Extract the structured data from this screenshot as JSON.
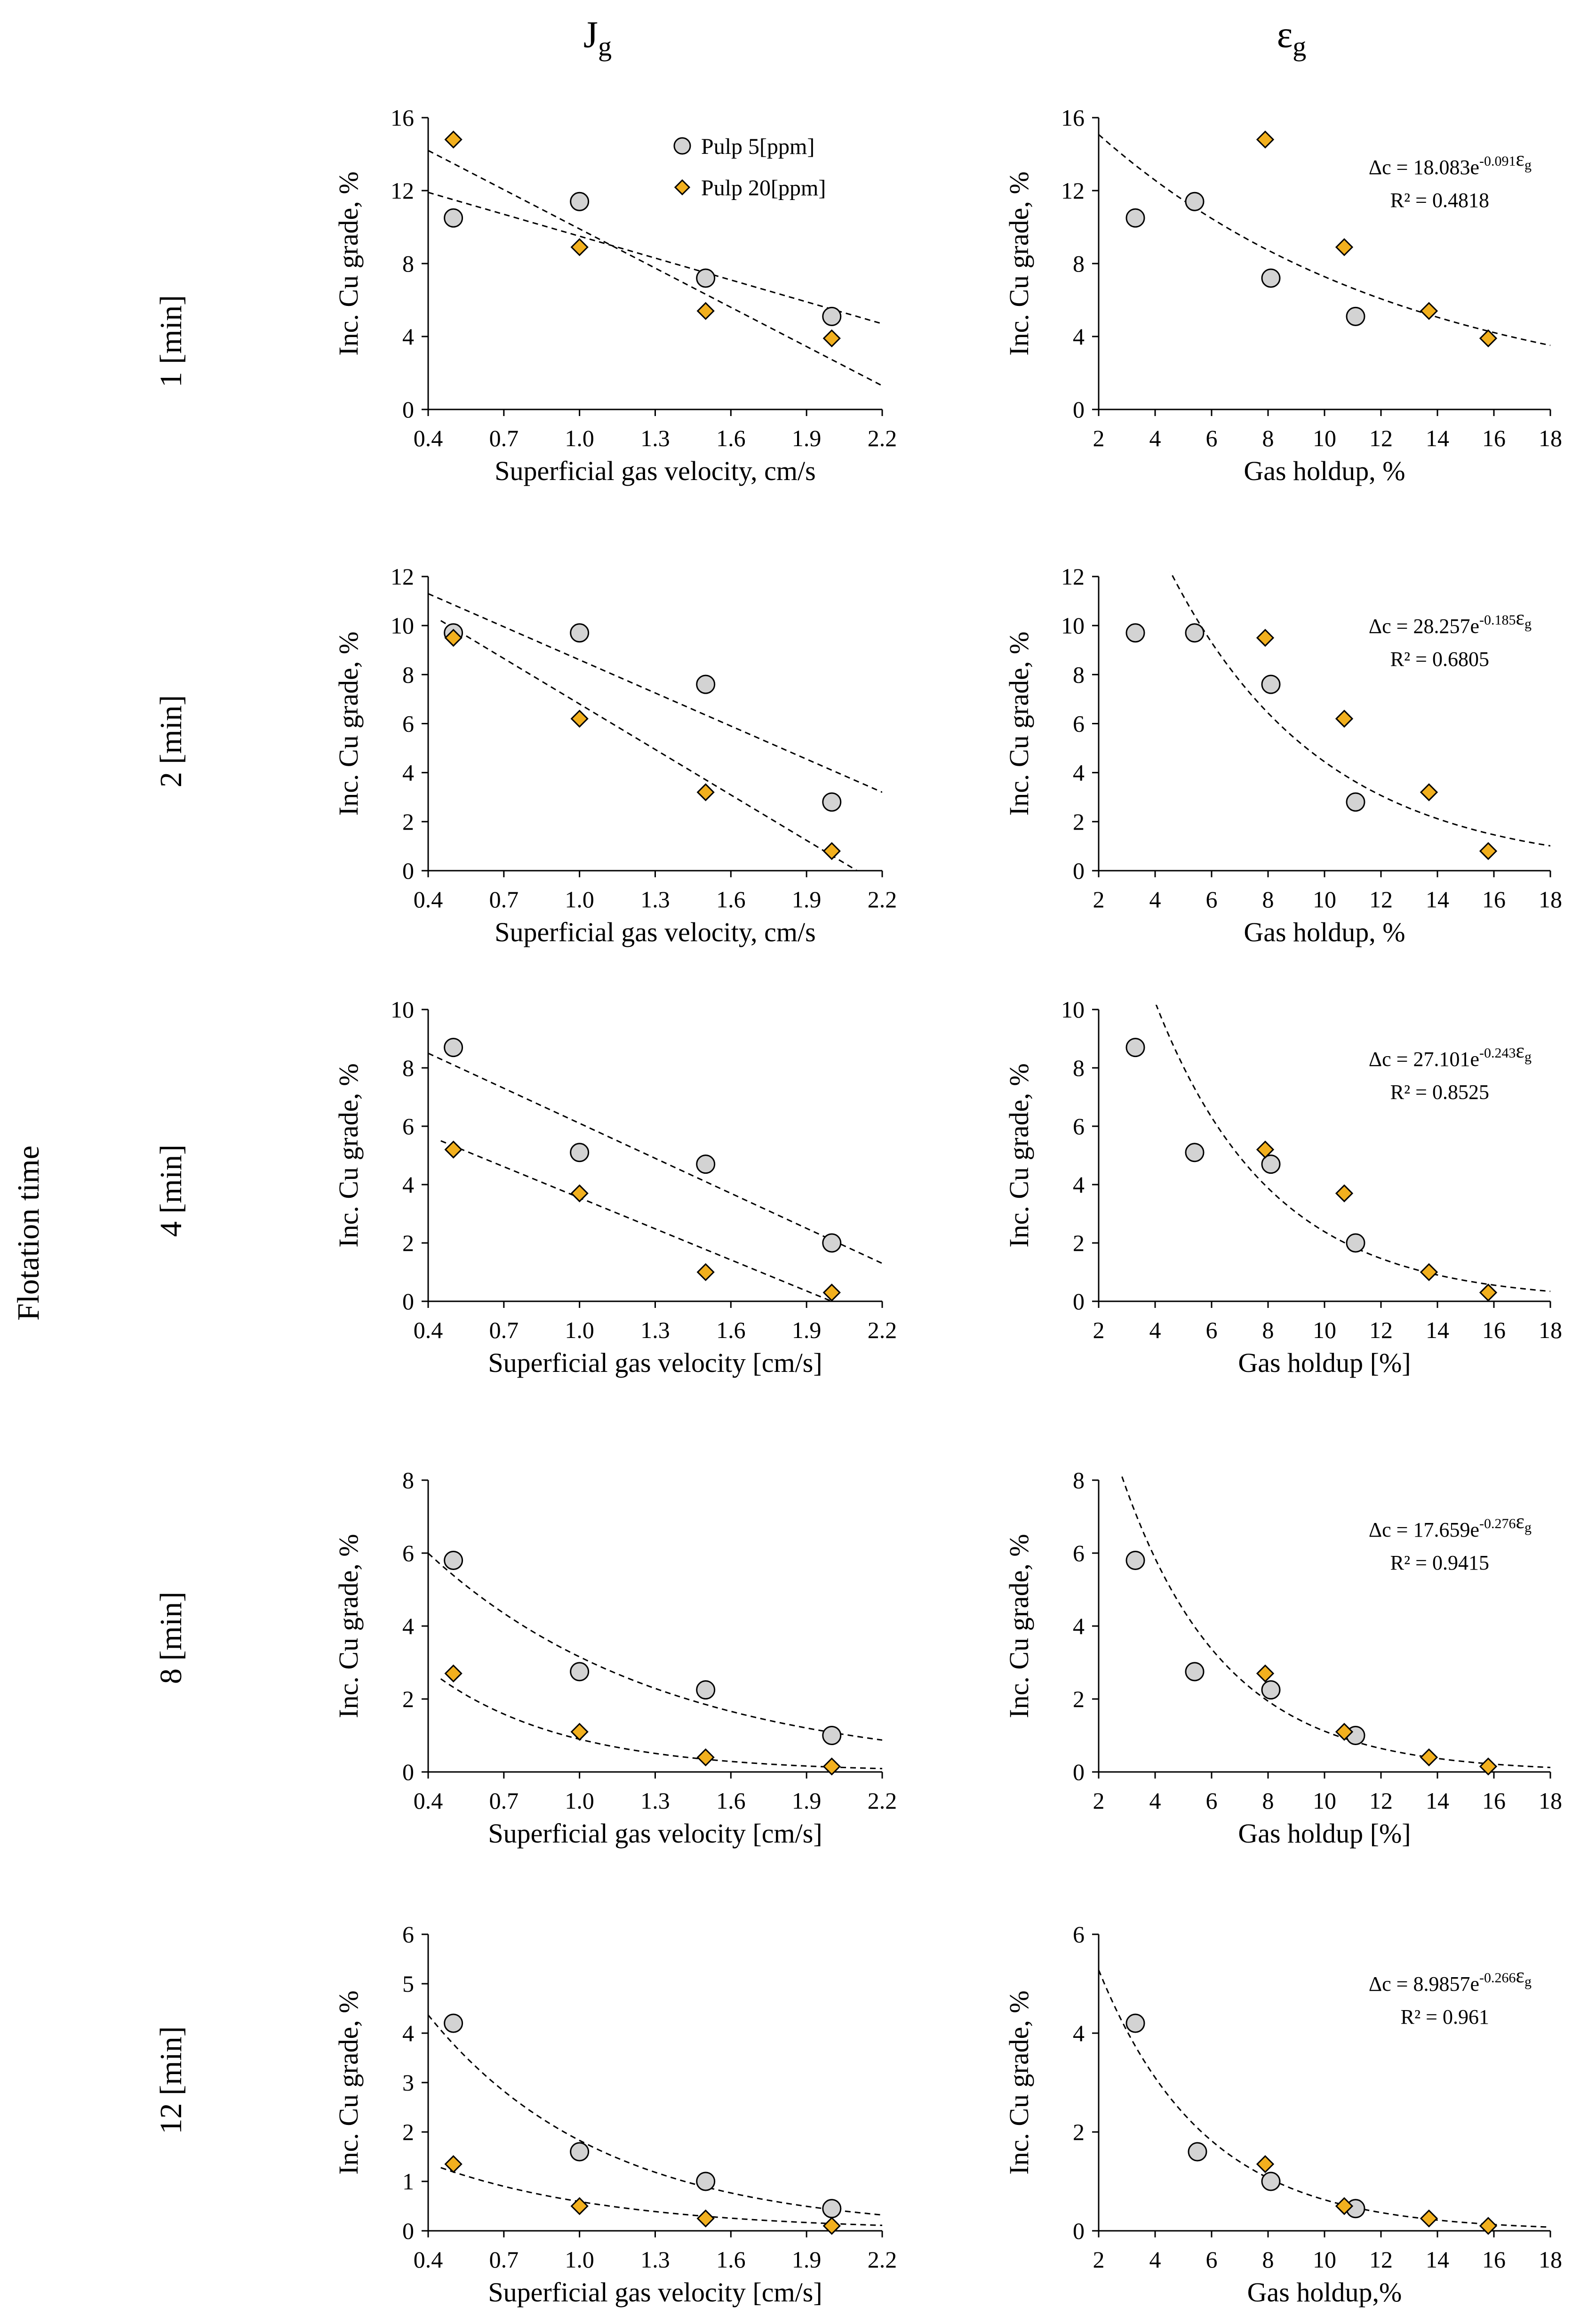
{
  "figure": {
    "column_headers": [
      {
        "main": "J",
        "sub": "g"
      },
      {
        "main": "ε",
        "sub": "g"
      }
    ],
    "side_label": "Flotation time",
    "legend": [
      "Pulp 5[ppm]",
      "Pulp 20[ppm]"
    ],
    "rows": [
      "1 [min]",
      "2 [min]",
      "4 [min]",
      "8 [min]",
      "12 [min]"
    ]
  },
  "colors": {
    "pulp5_fill": "#d3d3d3",
    "pulp20_fill": "#f2b01e",
    "marker_stroke": "#000000",
    "axis": "#000000"
  },
  "chart_data": [
    {
      "id": "r0-jg",
      "type": "scatter",
      "row": "1 [min]",
      "xlabel": "Superficial gas velocity, cm/s",
      "ylabel": "Inc. Cu grade, %",
      "xlim": [
        0.4,
        2.2
      ],
      "ylim": [
        0,
        16
      ],
      "xticks": [
        "0.4",
        "0.7",
        "1.0",
        "1.3",
        "1.6",
        "1.9",
        "2.2"
      ],
      "yticks": [
        "0",
        "4",
        "8",
        "12",
        "16"
      ],
      "series": [
        {
          "name": "Pulp 5[ppm]",
          "x": [
            0.5,
            1.0,
            1.5,
            2.0
          ],
          "y": [
            10.5,
            11.4,
            7.2,
            5.1
          ],
          "trend": {
            "kind": "linear",
            "x": [
              0.4,
              2.2
            ],
            "y": [
              11.9,
              4.7
            ]
          }
        },
        {
          "name": "Pulp 20[ppm]",
          "x": [
            0.5,
            1.0,
            1.5,
            2.0
          ],
          "y": [
            14.8,
            8.9,
            5.4,
            3.9
          ],
          "trend": {
            "kind": "linear",
            "x": [
              0.4,
              2.2
            ],
            "y": [
              14.2,
              1.3
            ]
          }
        }
      ],
      "legend": true
    },
    {
      "id": "r0-eg",
      "type": "scatter",
      "row": "1 [min]",
      "xlabel": "Gas holdup, %",
      "ylabel": "Inc. Cu grade, %",
      "xlim": [
        2,
        18
      ],
      "ylim": [
        0,
        16
      ],
      "xticks": [
        "2",
        "4",
        "6",
        "8",
        "10",
        "12",
        "14",
        "16",
        "18"
      ],
      "yticks": [
        "0",
        "4",
        "8",
        "12",
        "16"
      ],
      "series": [
        {
          "name": "Pulp 5[ppm]",
          "x": [
            3.3,
            5.4,
            8.1,
            11.1
          ],
          "y": [
            10.5,
            11.4,
            7.2,
            5.1
          ]
        },
        {
          "name": "Pulp 20[ppm]",
          "x": [
            7.9,
            10.7,
            13.7,
            15.8
          ],
          "y": [
            14.8,
            8.9,
            5.4,
            3.9
          ]
        }
      ],
      "fit": {
        "a": 18.083,
        "b": -0.091,
        "xmin": 2,
        "xmax": 18
      },
      "equation": {
        "prefix": "Δc = 18.083e",
        "exp": "-0.091",
        "var": "ε",
        "sub": "g"
      },
      "r2": "R² = 0.4818"
    },
    {
      "id": "r1-jg",
      "type": "scatter",
      "row": "2 [min]",
      "xlabel": "Superficial gas velocity, cm/s",
      "ylabel": "Inc. Cu grade, %",
      "xlim": [
        0.4,
        2.2
      ],
      "ylim": [
        0,
        12
      ],
      "xticks": [
        "0.4",
        "0.7",
        "1.0",
        "1.3",
        "1.6",
        "1.9",
        "2.2"
      ],
      "yticks": [
        "0",
        "2",
        "4",
        "6",
        "8",
        "10",
        "12"
      ],
      "series": [
        {
          "name": "Pulp 5[ppm]",
          "x": [
            0.5,
            1.0,
            1.5,
            2.0
          ],
          "y": [
            9.7,
            9.7,
            7.6,
            2.8
          ],
          "trend": {
            "kind": "linear",
            "x": [
              0.4,
              2.2
            ],
            "y": [
              11.3,
              3.2
            ]
          }
        },
        {
          "name": "Pulp 20[ppm]",
          "x": [
            0.5,
            1.0,
            1.5,
            2.0
          ],
          "y": [
            9.5,
            6.2,
            3.2,
            0.8
          ],
          "trend": {
            "kind": "linear",
            "x": [
              0.45,
              2.1
            ],
            "y": [
              10.2,
              0.0
            ]
          }
        }
      ]
    },
    {
      "id": "r1-eg",
      "type": "scatter",
      "row": "2 [min]",
      "xlabel": "Gas holdup, %",
      "ylabel": "Inc. Cu grade, %",
      "xlim": [
        2,
        18
      ],
      "ylim": [
        0,
        12
      ],
      "xticks": [
        "2",
        "4",
        "6",
        "8",
        "10",
        "12",
        "14",
        "16",
        "18"
      ],
      "yticks": [
        "0",
        "2",
        "4",
        "6",
        "8",
        "10",
        "12"
      ],
      "series": [
        {
          "name": "Pulp 5[ppm]",
          "x": [
            3.3,
            5.4,
            8.1,
            11.1
          ],
          "y": [
            9.7,
            9.7,
            7.6,
            2.8
          ]
        },
        {
          "name": "Pulp 20[ppm]",
          "x": [
            7.9,
            10.7,
            13.7,
            15.8
          ],
          "y": [
            9.5,
            6.2,
            3.2,
            0.8
          ]
        }
      ],
      "fit": {
        "a": 28.257,
        "b": -0.185,
        "xmin": 2,
        "xmax": 18
      },
      "equation": {
        "prefix": "Δc = 28.257e",
        "exp": "-0.185",
        "var": "ε",
        "sub": "g"
      },
      "r2": "R² = 0.6805"
    },
    {
      "id": "r2-jg",
      "type": "scatter",
      "row": "4 [min]",
      "xlabel": "Superficial gas velocity [cm/s]",
      "ylabel": "Inc. Cu grade, %",
      "xlim": [
        0.4,
        2.2
      ],
      "ylim": [
        0,
        10
      ],
      "xticks": [
        "0.4",
        "0.7",
        "1.0",
        "1.3",
        "1.6",
        "1.9",
        "2.2"
      ],
      "yticks": [
        "0",
        "2",
        "4",
        "6",
        "8",
        "10"
      ],
      "series": [
        {
          "name": "Pulp 5[ppm]",
          "x": [
            0.5,
            1.0,
            1.5,
            2.0
          ],
          "y": [
            8.7,
            5.1,
            4.7,
            2.0
          ],
          "trend": {
            "kind": "linear",
            "x": [
              0.4,
              2.2
            ],
            "y": [
              8.5,
              1.3
            ]
          }
        },
        {
          "name": "Pulp 20[ppm]",
          "x": [
            0.5,
            1.0,
            1.5,
            2.0
          ],
          "y": [
            5.2,
            3.7,
            1.0,
            0.3
          ],
          "trend": {
            "kind": "linear",
            "x": [
              0.45,
              2.0
            ],
            "y": [
              5.5,
              0.0
            ]
          }
        }
      ]
    },
    {
      "id": "r2-eg",
      "type": "scatter",
      "row": "4 [min]",
      "xlabel": "Gas holdup [%]",
      "ylabel": "Inc. Cu grade, %",
      "xlim": [
        2,
        18
      ],
      "ylim": [
        0,
        10
      ],
      "xticks": [
        "2",
        "4",
        "6",
        "8",
        "10",
        "12",
        "14",
        "16",
        "18"
      ],
      "yticks": [
        "0",
        "2",
        "4",
        "6",
        "8",
        "10"
      ],
      "series": [
        {
          "name": "Pulp 5[ppm]",
          "x": [
            3.3,
            5.4,
            8.1,
            11.1
          ],
          "y": [
            8.7,
            5.1,
            4.7,
            2.0
          ]
        },
        {
          "name": "Pulp 20[ppm]",
          "x": [
            7.9,
            10.7,
            13.7,
            15.8
          ],
          "y": [
            5.2,
            3.7,
            1.0,
            0.3
          ]
        }
      ],
      "fit": {
        "a": 27.101,
        "b": -0.243,
        "xmin": 2,
        "xmax": 18
      },
      "equation": {
        "prefix": "Δc = 27.101e",
        "exp": "-0.243",
        "var": "ε",
        "sub": "g"
      },
      "r2": "R² = 0.8525"
    },
    {
      "id": "r3-jg",
      "type": "scatter",
      "row": "8 [min]",
      "xlabel": "Superficial gas velocity [cm/s]",
      "ylabel": "Inc. Cu grade, %",
      "xlim": [
        0.4,
        2.2
      ],
      "ylim": [
        0,
        8
      ],
      "xticks": [
        "0.4",
        "0.7",
        "1.0",
        "1.3",
        "1.6",
        "1.9",
        "2.2"
      ],
      "yticks": [
        "0",
        "2",
        "4",
        "6",
        "8"
      ],
      "series": [
        {
          "name": "Pulp 5[ppm]",
          "x": [
            0.5,
            1.0,
            1.5,
            2.0
          ],
          "y": [
            5.8,
            2.75,
            2.25,
            1.0
          ],
          "trend": {
            "kind": "exp",
            "a": 9.2,
            "b": -1.07,
            "xmin": 0.4,
            "xmax": 2.2
          }
        },
        {
          "name": "Pulp 20[ppm]",
          "x": [
            0.5,
            1.0,
            1.5,
            2.0
          ],
          "y": [
            2.7,
            1.1,
            0.4,
            0.15
          ],
          "trend": {
            "kind": "exp",
            "a": 6.0,
            "b": -1.9,
            "xmin": 0.45,
            "xmax": 2.2
          }
        }
      ]
    },
    {
      "id": "r3-eg",
      "type": "scatter",
      "row": "8 [min]",
      "xlabel": "Gas holdup [%]",
      "ylabel": "Inc. Cu grade, %",
      "xlim": [
        2,
        18
      ],
      "ylim": [
        0,
        8
      ],
      "xticks": [
        "2",
        "4",
        "6",
        "8",
        "10",
        "12",
        "14",
        "16",
        "18"
      ],
      "yticks": [
        "0",
        "2",
        "4",
        "6",
        "8"
      ],
      "series": [
        {
          "name": "Pulp 5[ppm]",
          "x": [
            3.3,
            5.4,
            8.1,
            11.1
          ],
          "y": [
            5.8,
            2.75,
            2.25,
            1.0
          ]
        },
        {
          "name": "Pulp 20[ppm]",
          "x": [
            7.9,
            10.7,
            13.7,
            15.8
          ],
          "y": [
            2.7,
            1.1,
            0.4,
            0.15
          ]
        }
      ],
      "fit": {
        "a": 17.659,
        "b": -0.276,
        "xmin": 2,
        "xmax": 18
      },
      "equation": {
        "prefix": "Δc = 17.659e",
        "exp": "-0.276",
        "var": "ε",
        "sub": "g"
      },
      "r2": "R² = 0.9415"
    },
    {
      "id": "r4-jg",
      "type": "scatter",
      "row": "12 [min]",
      "xlabel": "Superficial gas velocity [cm/s]",
      "ylabel": "Inc. Cu grade, %",
      "xlim": [
        0.4,
        2.2
      ],
      "ylim": [
        0,
        6
      ],
      "xticks": [
        "0.4",
        "0.7",
        "1.0",
        "1.3",
        "1.6",
        "1.9",
        "2.2"
      ],
      "yticks": [
        "0",
        "1",
        "2",
        "3",
        "4",
        "5",
        "6"
      ],
      "series": [
        {
          "name": "Pulp 5[ppm]",
          "x": [
            0.5,
            1.0,
            1.5,
            2.0
          ],
          "y": [
            4.2,
            1.6,
            1.0,
            0.45
          ],
          "trend": {
            "kind": "exp",
            "a": 7.8,
            "b": -1.45,
            "xmin": 0.4,
            "xmax": 2.2
          }
        },
        {
          "name": "Pulp 20[ppm]",
          "x": [
            0.5,
            1.0,
            1.5,
            2.0
          ],
          "y": [
            1.35,
            0.5,
            0.25,
            0.1
          ],
          "trend": {
            "kind": "exp",
            "a": 2.4,
            "b": -1.4,
            "xmin": 0.45,
            "xmax": 2.2
          }
        }
      ]
    },
    {
      "id": "r4-eg",
      "type": "scatter",
      "row": "12 [min]",
      "xlabel": "Gas holdup,%",
      "ylabel": "Inc. Cu grade, %",
      "xlim": [
        2,
        18
      ],
      "ylim": [
        0,
        6
      ],
      "xticks": [
        "2",
        "4",
        "6",
        "8",
        "10",
        "12",
        "14",
        "16",
        "18"
      ],
      "yticks": [
        "0",
        "2",
        "4",
        "6"
      ],
      "series": [
        {
          "name": "Pulp 5[ppm]",
          "x": [
            3.3,
            5.5,
            8.1,
            11.1
          ],
          "y": [
            4.2,
            1.6,
            1.0,
            0.45
          ]
        },
        {
          "name": "Pulp 20[ppm]",
          "x": [
            7.9,
            10.7,
            13.7,
            15.8
          ],
          "y": [
            1.35,
            0.5,
            0.25,
            0.1
          ]
        }
      ],
      "fit": {
        "a": 8.9857,
        "b": -0.266,
        "xmin": 2,
        "xmax": 18
      },
      "equation": {
        "prefix": "Δc = 8.9857e",
        "exp": "-0.266",
        "var": "ε",
        "sub": "g"
      },
      "r2": "R² = 0.961"
    }
  ]
}
